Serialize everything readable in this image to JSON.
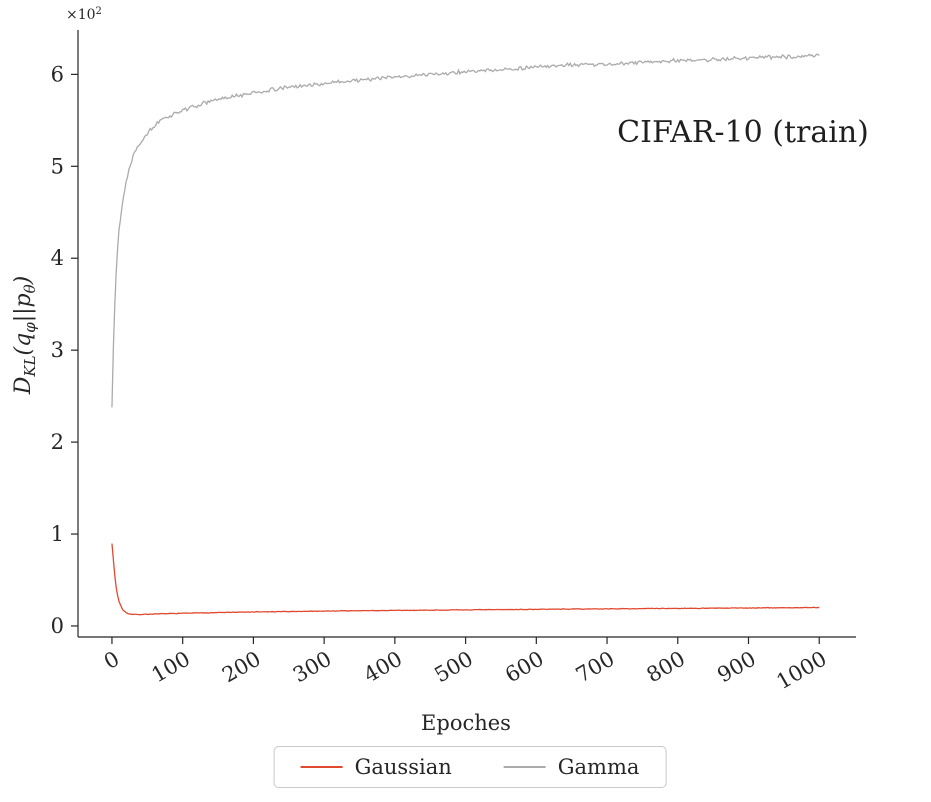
{
  "figure": {
    "background": "#ffffff",
    "text_color": "#262626"
  },
  "chart_data": {
    "type": "line",
    "title": "CIFAR-10 (train)",
    "xlabel": "Epoches",
    "ylabel": "D_KL(q_φ||p_θ)",
    "ylabel_parts": {
      "p1": "D",
      "p2": "KL",
      "p3": "(q",
      "p4": "φ",
      "p5": "||p",
      "p6": "θ",
      "p7": ")"
    },
    "y_offset_text": {
      "base": "×10",
      "exp": "2"
    },
    "y_units": "axis values are in units of 10^2",
    "x_ticks": [
      0,
      100,
      200,
      300,
      400,
      500,
      600,
      700,
      800,
      900,
      1000
    ],
    "y_ticks": [
      0,
      1,
      2,
      3,
      4,
      5,
      6
    ],
    "xlim": [
      -48,
      1052
    ],
    "ylim": [
      -0.12,
      6.45
    ],
    "grid": false,
    "legend_position": "bottom-center",
    "series": [
      {
        "name": "Gaussian",
        "color": "#e1492f",
        "noise": 0.004,
        "seed": 7,
        "points": [
          [
            0,
            0.9
          ],
          [
            2,
            0.72
          ],
          [
            4,
            0.55
          ],
          [
            6,
            0.42
          ],
          [
            8,
            0.33
          ],
          [
            10,
            0.27
          ],
          [
            13,
            0.21
          ],
          [
            16,
            0.17
          ],
          [
            20,
            0.145
          ],
          [
            25,
            0.13
          ],
          [
            30,
            0.125
          ],
          [
            40,
            0.125
          ],
          [
            50,
            0.128
          ],
          [
            75,
            0.133
          ],
          [
            100,
            0.138
          ],
          [
            150,
            0.146
          ],
          [
            200,
            0.152
          ],
          [
            250,
            0.157
          ],
          [
            300,
            0.162
          ],
          [
            350,
            0.166
          ],
          [
            400,
            0.169
          ],
          [
            450,
            0.172
          ],
          [
            500,
            0.175
          ],
          [
            550,
            0.178
          ],
          [
            600,
            0.181
          ],
          [
            650,
            0.184
          ],
          [
            700,
            0.186
          ],
          [
            750,
            0.189
          ],
          [
            800,
            0.191
          ],
          [
            850,
            0.193
          ],
          [
            900,
            0.196
          ],
          [
            950,
            0.198
          ],
          [
            1000,
            0.2
          ]
        ]
      },
      {
        "name": "Gamma",
        "color": "#ababab",
        "noise": 0.025,
        "seed": 13,
        "points": [
          [
            0,
            2.38
          ],
          [
            1,
            2.75
          ],
          [
            2,
            3.05
          ],
          [
            3,
            3.3
          ],
          [
            5,
            3.72
          ],
          [
            7,
            4.0
          ],
          [
            10,
            4.3
          ],
          [
            13,
            4.5
          ],
          [
            16,
            4.65
          ],
          [
            20,
            4.83
          ],
          [
            25,
            5.0
          ],
          [
            30,
            5.12
          ],
          [
            35,
            5.2
          ],
          [
            40,
            5.26
          ],
          [
            50,
            5.36
          ],
          [
            60,
            5.44
          ],
          [
            70,
            5.5
          ],
          [
            85,
            5.56
          ],
          [
            100,
            5.61
          ],
          [
            120,
            5.66
          ],
          [
            140,
            5.71
          ],
          [
            160,
            5.74
          ],
          [
            180,
            5.77
          ],
          [
            200,
            5.8
          ],
          [
            225,
            5.83
          ],
          [
            250,
            5.86
          ],
          [
            275,
            5.88
          ],
          [
            300,
            5.9
          ],
          [
            350,
            5.94
          ],
          [
            400,
            5.97
          ],
          [
            450,
            6.0
          ],
          [
            500,
            6.03
          ],
          [
            550,
            6.05
          ],
          [
            600,
            6.08
          ],
          [
            650,
            6.1
          ],
          [
            700,
            6.11
          ],
          [
            750,
            6.13
          ],
          [
            800,
            6.15
          ],
          [
            850,
            6.16
          ],
          [
            900,
            6.18
          ],
          [
            950,
            6.19
          ],
          [
            1000,
            6.21
          ]
        ]
      }
    ]
  }
}
